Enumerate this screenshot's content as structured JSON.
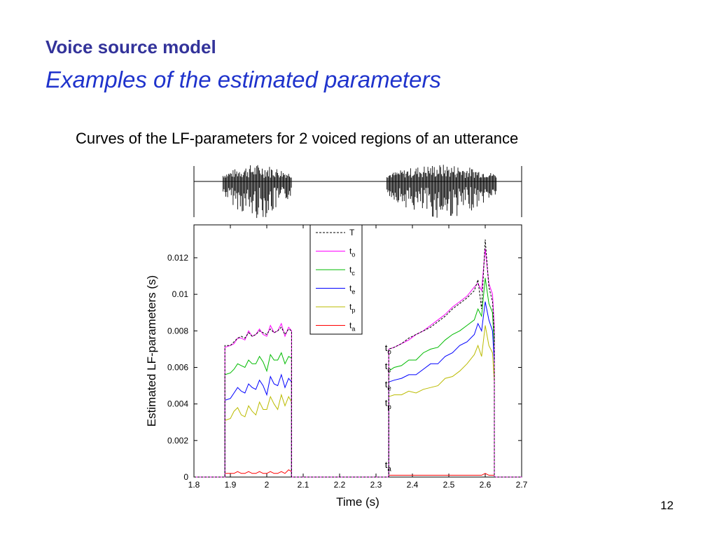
{
  "slide": {
    "title": "Voice source model",
    "subtitle": "Examples of the estimated parameters",
    "caption": "Curves of the LF-parameters for 2 voiced regions of an utterance",
    "page_number": "12"
  },
  "chart_data": [
    {
      "type": "line",
      "panel": "waveform",
      "description_note": "",
      "x_range": [
        1.8,
        2.7
      ],
      "voiced_regions": [
        [
          1.88,
          2.07
        ],
        [
          2.33,
          2.63
        ]
      ]
    },
    {
      "type": "line",
      "panel": "lf-parameters",
      "xlabel": "Time (s)",
      "ylabel": "Estimated LF-parameters (s)",
      "xlim": [
        1.8,
        2.7
      ],
      "ylim": [
        0,
        0.0138
      ],
      "xticks": [
        1.8,
        1.9,
        2,
        2.1,
        2.2,
        2.3,
        2.4,
        2.5,
        2.6,
        2.7
      ],
      "xtick_labels": [
        "1.8",
        "1.9",
        "2",
        "2.1",
        "2.2",
        "2.3",
        "2.4",
        "2.5",
        "2.6",
        "2.7"
      ],
      "yticks": [
        0,
        0.002,
        0.004,
        0.006,
        0.008,
        0.01,
        0.012
      ],
      "ytick_labels": [
        "0",
        "0.002",
        "0.004",
        "0.006",
        "0.008",
        "0.01",
        "0.012"
      ],
      "legend_position": "top-center",
      "series": [
        {
          "name": "T",
          "sub": "",
          "color": "#000000",
          "dashed": true,
          "labels": []
        },
        {
          "name": "t",
          "sub": "o",
          "color": "#ff00ff",
          "dashed": false
        },
        {
          "name": "t",
          "sub": "c",
          "color": "#00bb00",
          "dashed": false
        },
        {
          "name": "t",
          "sub": "e",
          "color": "#0000ff",
          "dashed": false
        },
        {
          "name": "t",
          "sub": "p",
          "color": "#bbbb00",
          "dashed": false
        },
        {
          "name": "t",
          "sub": "a",
          "color": "#ff0000",
          "dashed": false
        }
      ],
      "regions": [
        {
          "x": [
            1.885,
            1.9,
            1.91,
            1.92,
            1.93,
            1.94,
            1.95,
            1.96,
            1.97,
            1.98,
            1.99,
            2.0,
            2.01,
            2.02,
            2.03,
            2.04,
            2.05,
            2.06,
            2.068
          ],
          "T": [
            0.0072,
            0.0072,
            0.0074,
            0.0076,
            0.0077,
            0.0076,
            0.0079,
            0.0077,
            0.0078,
            0.008,
            0.0079,
            0.0078,
            0.0081,
            0.0079,
            0.008,
            0.0082,
            0.0078,
            0.0081,
            0.008
          ],
          "to": [
            0.0071,
            0.0072,
            0.0073,
            0.0076,
            0.0076,
            0.0075,
            0.008,
            0.0077,
            0.0078,
            0.0081,
            0.0078,
            0.0077,
            0.0083,
            0.0079,
            0.008,
            0.0084,
            0.0077,
            0.0082,
            0.008
          ],
          "tc": [
            0.0056,
            0.0057,
            0.0059,
            0.0062,
            0.0061,
            0.006,
            0.0064,
            0.0062,
            0.0062,
            0.0066,
            0.0063,
            0.0058,
            0.0067,
            0.0064,
            0.0064,
            0.0068,
            0.0062,
            0.0066,
            0.0065
          ],
          "te": [
            0.0042,
            0.0043,
            0.0046,
            0.0049,
            0.0047,
            0.0046,
            0.0051,
            0.0049,
            0.0048,
            0.0053,
            0.005,
            0.0045,
            0.0055,
            0.0051,
            0.005,
            0.0056,
            0.0049,
            0.0054,
            0.0052
          ],
          "tp": [
            0.0031,
            0.0032,
            0.0036,
            0.0038,
            0.0034,
            0.0033,
            0.0039,
            0.0036,
            0.0034,
            0.0041,
            0.0037,
            0.0037,
            0.0044,
            0.004,
            0.0037,
            0.0045,
            0.0039,
            0.0044,
            0.0041
          ],
          "ta": [
            0.0002,
            0.0002,
            0.0002,
            0.0003,
            0.0002,
            0.0002,
            0.0003,
            0.0002,
            0.0002,
            0.0003,
            0.0002,
            0.0002,
            0.0003,
            0.0002,
            0.0002,
            0.0003,
            0.0002,
            0.0004,
            0.0003
          ]
        },
        {
          "x": [
            2.335,
            2.35,
            2.37,
            2.39,
            2.41,
            2.43,
            2.45,
            2.47,
            2.49,
            2.51,
            2.53,
            2.55,
            2.57,
            2.58,
            2.59,
            2.6,
            2.61,
            2.62,
            2.625
          ],
          "T": [
            0.007,
            0.0071,
            0.0073,
            0.0076,
            0.0078,
            0.008,
            0.0082,
            0.0085,
            0.0088,
            0.0092,
            0.0095,
            0.0098,
            0.0102,
            0.0108,
            0.0092,
            0.013,
            0.0104,
            0.0096,
            0.0078
          ],
          "to": [
            0.007,
            0.0071,
            0.0073,
            0.0075,
            0.0078,
            0.008,
            0.0083,
            0.0086,
            0.0089,
            0.0093,
            0.0096,
            0.0099,
            0.0104,
            0.0106,
            0.0102,
            0.0125,
            0.0106,
            0.01,
            0.0082
          ],
          "tc": [
            0.0058,
            0.006,
            0.0061,
            0.0064,
            0.0064,
            0.0068,
            0.007,
            0.0071,
            0.0075,
            0.0078,
            0.008,
            0.0083,
            0.0086,
            0.0092,
            0.0088,
            0.0109,
            0.0095,
            0.009,
            0.007
          ],
          "te": [
            0.0052,
            0.0053,
            0.0054,
            0.0056,
            0.0056,
            0.0059,
            0.0062,
            0.0062,
            0.0066,
            0.0068,
            0.0072,
            0.0074,
            0.0078,
            0.0084,
            0.008,
            0.0096,
            0.0086,
            0.008,
            0.0062
          ],
          "tp": [
            0.0044,
            0.0045,
            0.0045,
            0.0047,
            0.0046,
            0.0048,
            0.0049,
            0.005,
            0.0054,
            0.0055,
            0.0058,
            0.0062,
            0.0067,
            0.0072,
            0.0066,
            0.0083,
            0.0072,
            0.0068,
            0.0052
          ],
          "ta": [
            0.0001,
            0.0001,
            0.0001,
            0.0001,
            0.0001,
            0.0001,
            0.0001,
            0.0001,
            0.0001,
            0.0001,
            0.0001,
            0.0001,
            0.0001,
            0.0001,
            0.0001,
            0.0002,
            0.0001,
            0.0001,
            0.0001
          ]
        }
      ],
      "annotations": [
        {
          "text": "t",
          "sub": "o",
          "x": 2.315,
          "y": 0.0069
        },
        {
          "text": "t",
          "sub": "c",
          "x": 2.315,
          "y": 0.0059
        },
        {
          "text": "t",
          "sub": "e",
          "x": 2.315,
          "y": 0.0049
        },
        {
          "text": "t",
          "sub": "p",
          "x": 2.315,
          "y": 0.0039
        },
        {
          "text": "t",
          "sub": "a",
          "x": 2.315,
          "y": 0.0005
        }
      ]
    }
  ]
}
